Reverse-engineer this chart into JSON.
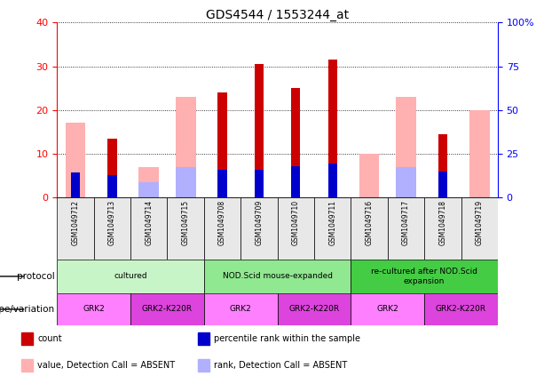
{
  "title": "GDS4544 / 1553244_at",
  "samples": [
    "GSM1049712",
    "GSM1049713",
    "GSM1049714",
    "GSM1049715",
    "GSM1049708",
    "GSM1049709",
    "GSM1049710",
    "GSM1049711",
    "GSM1049716",
    "GSM1049717",
    "GSM1049718",
    "GSM1049719"
  ],
  "count": [
    null,
    13.5,
    null,
    null,
    24.0,
    30.5,
    25.0,
    31.5,
    null,
    null,
    14.5,
    null
  ],
  "percentile_rank": [
    14.5,
    13.0,
    null,
    null,
    16.0,
    16.0,
    18.0,
    19.5,
    null,
    null,
    15.0,
    null
  ],
  "absent_value": [
    17.0,
    null,
    7.0,
    23.0,
    null,
    null,
    null,
    null,
    10.0,
    23.0,
    null,
    20.0
  ],
  "absent_rank": [
    null,
    null,
    8.5,
    17.5,
    null,
    null,
    null,
    null,
    null,
    17.5,
    null,
    null
  ],
  "ylim_left": [
    0,
    40
  ],
  "ylim_right": [
    0,
    100
  ],
  "yticks_left": [
    0,
    10,
    20,
    30,
    40
  ],
  "yticks_right": [
    0,
    25,
    50,
    75,
    100
  ],
  "yticklabels_right": [
    "0",
    "25",
    "50",
    "75",
    "100%"
  ],
  "protocol_groups": [
    {
      "label": "cultured",
      "start": 0,
      "end": 3,
      "color": "#c8f5c8"
    },
    {
      "label": "NOD.Scid mouse-expanded",
      "start": 4,
      "end": 7,
      "color": "#90e890"
    },
    {
      "label": "re-cultured after NOD.Scid\nexpansion",
      "start": 8,
      "end": 11,
      "color": "#44cc44"
    }
  ],
  "genotype_groups": [
    {
      "label": "GRK2",
      "start": 0,
      "end": 1,
      "color": "#ff80ff"
    },
    {
      "label": "GRK2-K220R",
      "start": 2,
      "end": 3,
      "color": "#dd44dd"
    },
    {
      "label": "GRK2",
      "start": 4,
      "end": 5,
      "color": "#ff80ff"
    },
    {
      "label": "GRK2-K220R",
      "start": 6,
      "end": 7,
      "color": "#dd44dd"
    },
    {
      "label": "GRK2",
      "start": 8,
      "end": 9,
      "color": "#ff80ff"
    },
    {
      "label": "GRK2-K220R",
      "start": 10,
      "end": 11,
      "color": "#dd44dd"
    }
  ],
  "count_color": "#cc0000",
  "percentile_color": "#0000cc",
  "absent_value_color": "#ffb0b0",
  "absent_rank_color": "#b0b0ff",
  "bg_color": "#e8e8e8",
  "chart_bg": "#ffffff",
  "legend_items": [
    {
      "label": "count",
      "color": "#cc0000"
    },
    {
      "label": "percentile rank within the sample",
      "color": "#0000cc"
    },
    {
      "label": "value, Detection Call = ABSENT",
      "color": "#ffb0b0"
    },
    {
      "label": "rank, Detection Call = ABSENT",
      "color": "#b0b0ff"
    }
  ]
}
